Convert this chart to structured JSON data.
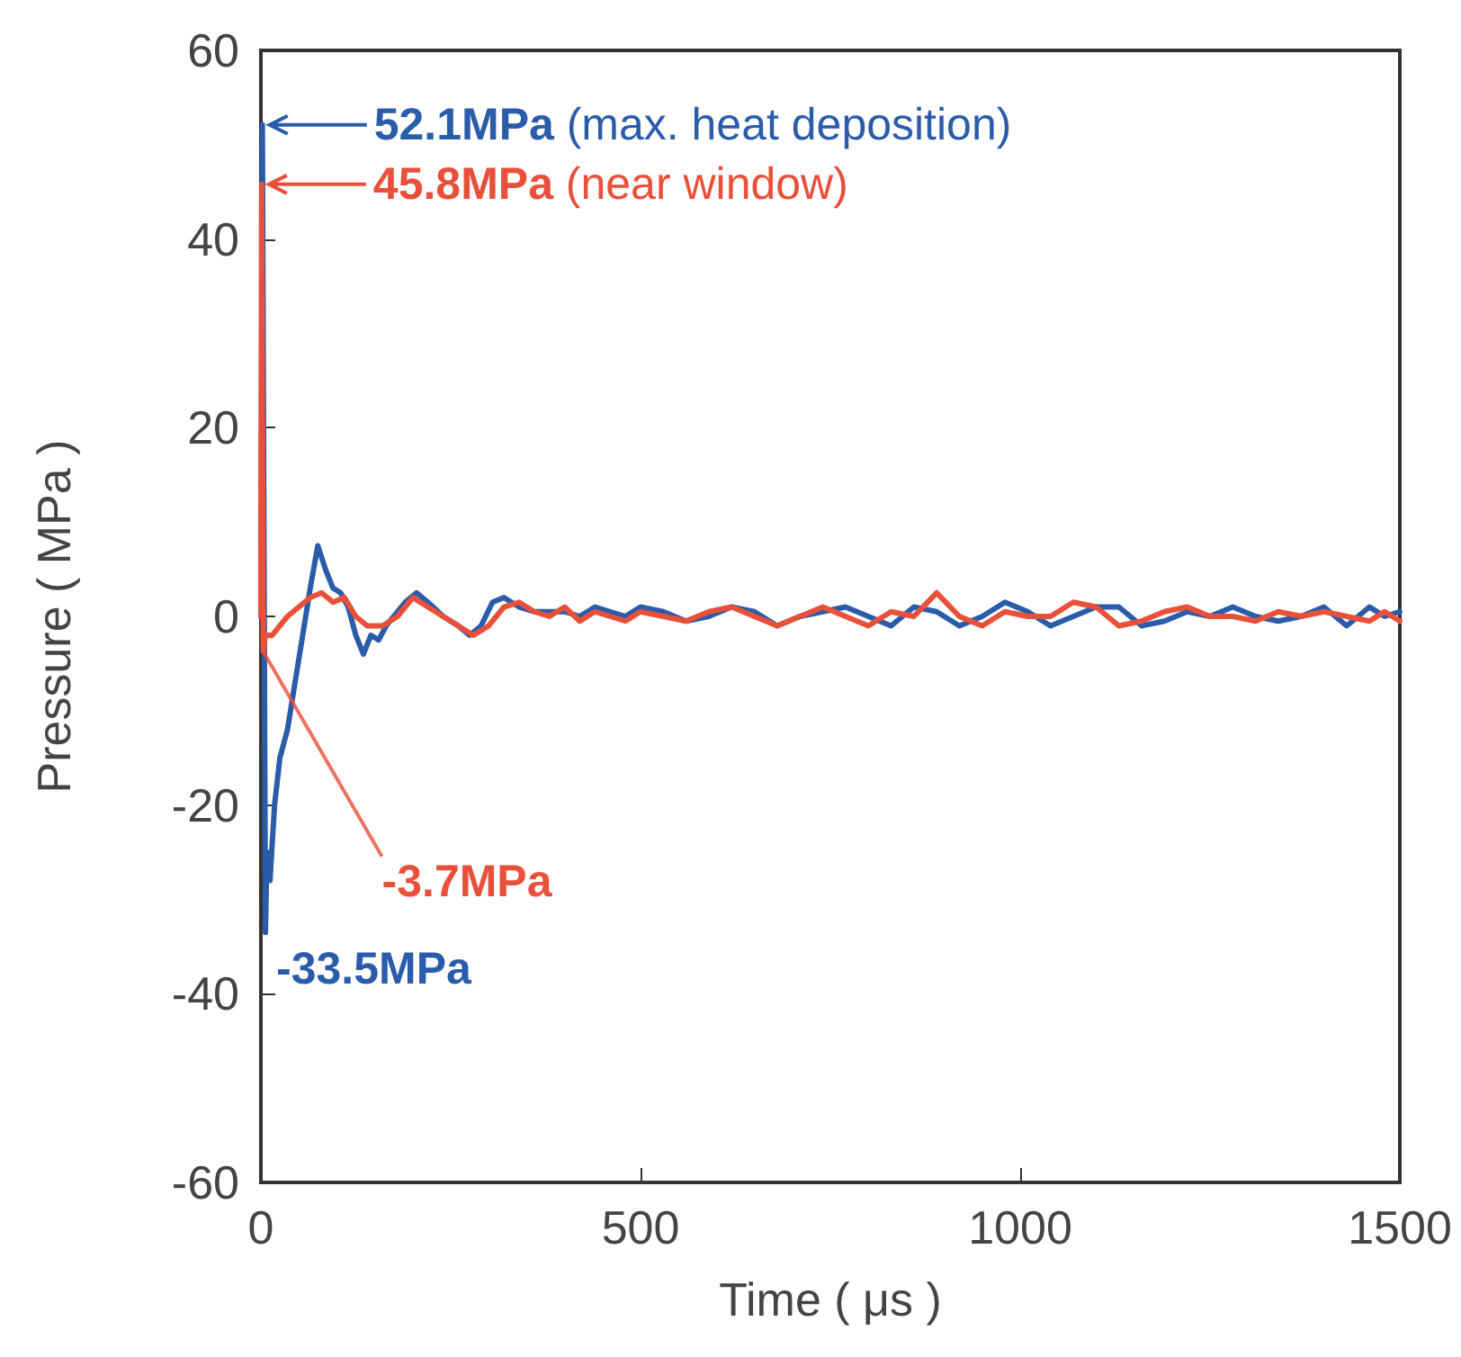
{
  "chart_data": {
    "type": "line",
    "xlabel": "Time ( μs )",
    "ylabel": "Pressure ( MPa )",
    "xlim": [
      0,
      1500
    ],
    "ylim": [
      -60,
      60
    ],
    "xticks": [
      0,
      500,
      1000,
      1500
    ],
    "yticks": [
      -60,
      -40,
      -20,
      0,
      20,
      40,
      60
    ],
    "grid": false,
    "marker": "none",
    "line_style": "solid",
    "series": [
      {
        "color": "#2a5caa",
        "x": [
          0,
          2,
          4,
          6,
          8,
          12,
          18,
          25,
          35,
          45,
          55,
          65,
          75,
          85,
          95,
          105,
          115,
          125,
          135,
          145,
          155,
          165,
          175,
          190,
          205,
          220,
          240,
          260,
          275,
          290,
          305,
          320,
          340,
          360,
          380,
          400,
          420,
          440,
          460,
          480,
          500,
          530,
          560,
          590,
          620,
          650,
          680,
          710,
          740,
          770,
          800,
          830,
          860,
          890,
          920,
          950,
          980,
          1010,
          1040,
          1070,
          1100,
          1130,
          1160,
          1190,
          1220,
          1250,
          1280,
          1310,
          1340,
          1370,
          1400,
          1430,
          1460,
          1480,
          1500
        ],
        "values": [
          0,
          52.1,
          10,
          -33.5,
          -25,
          -28,
          -20,
          -15,
          -12,
          -7,
          -2,
          3,
          7.5,
          5,
          3,
          2.5,
          1,
          -2,
          -4,
          -2,
          -2.5,
          -1,
          0,
          1.5,
          2.5,
          1.5,
          0,
          -1,
          -2,
          -1,
          1.5,
          2,
          1,
          0.5,
          0.5,
          0.5,
          0,
          1,
          0.5,
          0,
          1,
          0.5,
          -0.5,
          0,
          1,
          0.5,
          -1,
          0,
          0.5,
          1,
          0,
          -1,
          1,
          0.5,
          -1,
          0,
          1.5,
          0.5,
          -1,
          0,
          1,
          1,
          -1,
          -0.5,
          0.5,
          0,
          1,
          0,
          -0.5,
          0,
          1,
          -1,
          1,
          0,
          0.5
        ]
      },
      {
        "color": "#e8503a",
        "x": [
          0,
          1,
          3,
          6,
          15,
          25,
          35,
          50,
          65,
          80,
          95,
          110,
          125,
          140,
          160,
          180,
          200,
          220,
          240,
          260,
          280,
          300,
          320,
          340,
          360,
          380,
          400,
          420,
          440,
          460,
          480,
          500,
          530,
          560,
          590,
          620,
          650,
          680,
          710,
          740,
          770,
          800,
          830,
          860,
          890,
          920,
          950,
          980,
          1010,
          1040,
          1070,
          1100,
          1130,
          1160,
          1190,
          1220,
          1250,
          1280,
          1310,
          1340,
          1370,
          1400,
          1430,
          1460,
          1480,
          1500
        ],
        "values": [
          0,
          45.8,
          -3.7,
          -2,
          -2,
          -1,
          0,
          1,
          2,
          2.5,
          1.5,
          2,
          0,
          -1,
          -1,
          0,
          2,
          1,
          0,
          -1,
          -2,
          -1,
          1,
          1.5,
          0.5,
          0,
          1,
          -0.5,
          0.5,
          0,
          -0.5,
          0.5,
          0,
          -0.5,
          0.5,
          1,
          0,
          -1,
          0,
          1,
          0,
          -1,
          0.5,
          0,
          2.5,
          0,
          -1,
          0.5,
          0,
          0,
          1.5,
          1,
          -1,
          -0.5,
          0.5,
          1,
          0,
          0,
          -0.5,
          0.5,
          0,
          0.5,
          0,
          -0.5,
          0.5,
          -0.5
        ]
      }
    ],
    "annotations": [
      {
        "text": "52.1MPa (max. heat deposition)",
        "x": 2,
        "y": 52.1
      },
      {
        "text": "45.8MPa (near window)",
        "x": 1,
        "y": 45.8
      },
      {
        "text": "-3.7MPa",
        "x": 3,
        "y": -3.7
      },
      {
        "text": "-33.5MPa",
        "x": 6,
        "y": -33.5
      }
    ]
  }
}
